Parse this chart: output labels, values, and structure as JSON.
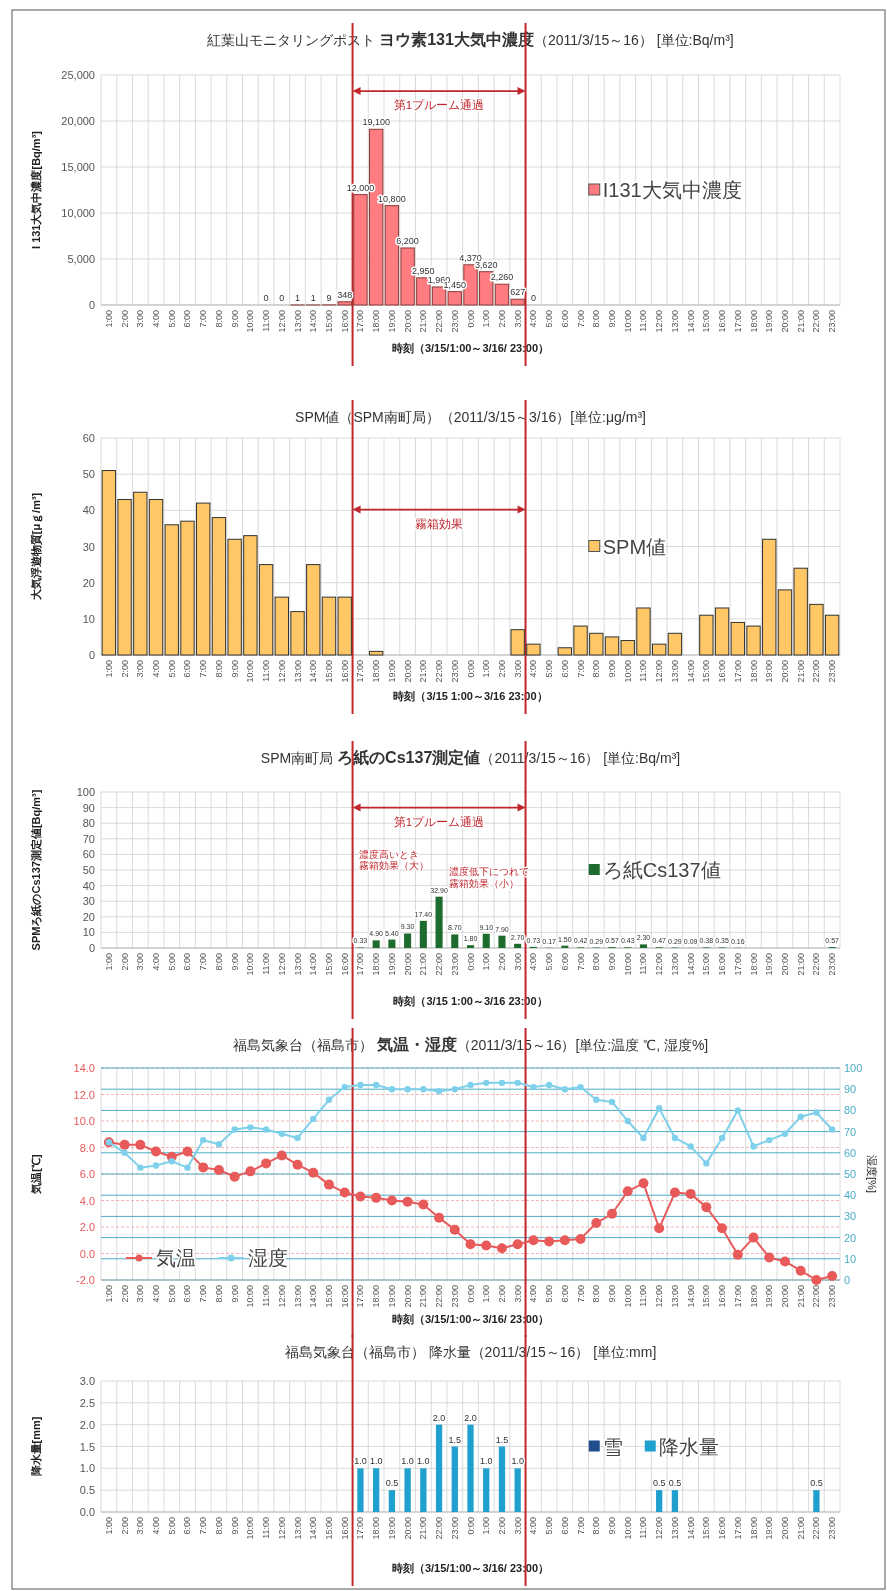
{
  "chart_data": [
    {
      "type": "bar",
      "title": "紅葉山モニタリングポスト **ヨウ素131大気中濃度**（2011/3/15～16） [単位:Bq/m³]",
      "xlabel": "時刻（3/15/1:00～3/16/ 23:00）",
      "ylabel": "I 131大気中濃度[Bq/m³]",
      "categories": [
        "1:00",
        "2:00",
        "3:00",
        "4:00",
        "5:00",
        "6:00",
        "7:00",
        "8:00",
        "9:00",
        "10:00",
        "11:00",
        "12:00",
        "13:00",
        "14:00",
        "15:00",
        "16:00",
        "17:00",
        "18:00",
        "19:00",
        "20:00",
        "21:00",
        "22:00",
        "23:00",
        "0:00",
        "1:00",
        "2:00",
        "3:00",
        "4:00",
        "5:00",
        "6:00",
        "7:00",
        "8:00",
        "9:00",
        "10:00",
        "11:00",
        "12:00",
        "13:00",
        "14:00",
        "15:00",
        "16:00",
        "17:00",
        "18:00",
        "19:00",
        "20:00",
        "21:00",
        "22:00",
        "23:00"
      ],
      "series": [
        {
          "name": "I131大気中濃度",
          "color": "#ff7c80",
          "values": [
            null,
            null,
            null,
            null,
            null,
            null,
            null,
            null,
            null,
            null,
            0,
            0,
            1,
            1,
            9,
            348,
            12000,
            19100,
            10800,
            6200,
            2950,
            1960,
            1450,
            4370,
            3620,
            2260,
            627,
            0,
            null,
            null,
            null,
            null,
            null,
            null,
            null,
            null,
            null,
            null,
            null,
            null,
            null,
            null,
            null,
            null,
            null,
            null,
            null
          ],
          "value_labels": [
            null,
            null,
            null,
            null,
            null,
            null,
            null,
            null,
            null,
            null,
            "0",
            "0",
            "1",
            "1",
            "9",
            "348",
            "12,000",
            "19,100",
            "10,800",
            "6,200",
            "2,950",
            "1,960",
            "1,450",
            "4,370",
            "3,620",
            "2,260",
            "627",
            "0",
            null,
            null,
            null,
            null,
            null,
            null,
            null,
            null,
            null,
            null,
            null,
            null,
            null,
            null,
            null,
            null,
            null,
            null,
            null
          ]
        }
      ],
      "ylim": [
        0,
        25000
      ],
      "yticks": [
        0,
        {
          "value": 5000,
          "label": "5,000"
        },
        {
          "value": 10000,
          "label": "10,000"
        },
        {
          "value": 15000,
          "label": "15,000"
        },
        {
          "value": 20000,
          "label": "20,000"
        },
        {
          "value": 25000,
          "label": "25,000"
        }
      ],
      "grid": true,
      "legend": "right",
      "annotations": [
        "第1プルーム通過"
      ]
    },
    {
      "type": "bar",
      "title": "SPM値（SPM南町局）（2011/3/15～3/16）[単位:μg/m³]",
      "xlabel": "時刻（3/15 1:00～3/16 23:00）",
      "ylabel": "大気浮遊物質[μｇ/m³]",
      "categories": [
        "1:00",
        "2:00",
        "3:00",
        "4:00",
        "5:00",
        "6:00",
        "7:00",
        "8:00",
        "9:00",
        "10:00",
        "11:00",
        "12:00",
        "13:00",
        "14:00",
        "15:00",
        "16:00",
        "17:00",
        "18:00",
        "19:00",
        "20:00",
        "21:00",
        "22:00",
        "23:00",
        "0:00",
        "1:00",
        "2:00",
        "3:00",
        "4:00",
        "5:00",
        "6:00",
        "7:00",
        "8:00",
        "9:00",
        "10:00",
        "11:00",
        "12:00",
        "13:00",
        "14:00",
        "15:00",
        "16:00",
        "17:00",
        "18:00",
        "19:00",
        "20:00",
        "21:00",
        "22:00",
        "23:00"
      ],
      "series": [
        {
          "name": "SPM値",
          "color": "#ffc766",
          "values": [
            51,
            43,
            45,
            43,
            36,
            37,
            42,
            38,
            32,
            33,
            25,
            16,
            12,
            25,
            16,
            16,
            0,
            1,
            0,
            0,
            0,
            0,
            0,
            0,
            0,
            0,
            7,
            3,
            0,
            2,
            8,
            6,
            5,
            4,
            13,
            3,
            6,
            0,
            11,
            13,
            9,
            8,
            32,
            18,
            24,
            14,
            11
          ]
        }
      ],
      "ylim": [
        0,
        60
      ],
      "yticks": [
        0,
        10,
        20,
        30,
        40,
        50,
        60
      ],
      "grid": true,
      "legend": "right",
      "annotations": [
        "霧箱効果"
      ]
    },
    {
      "type": "bar",
      "title": "SPM南町局 **ろ紙のCs137測定値**（2011/3/15～16） [単位:Bq/m³]",
      "xlabel": "時刻（3/15 1:00～3/16 23:00）",
      "ylabel": "SPMろ紙のCs137測定値[Bq/m³]",
      "categories": [
        "1:00",
        "2:00",
        "3:00",
        "4:00",
        "5:00",
        "6:00",
        "7:00",
        "8:00",
        "9:00",
        "10:00",
        "11:00",
        "12:00",
        "13:00",
        "14:00",
        "15:00",
        "16:00",
        "17:00",
        "18:00",
        "19:00",
        "20:00",
        "21:00",
        "22:00",
        "23:00",
        "0:00",
        "1:00",
        "2:00",
        "3:00",
        "4:00",
        "5:00",
        "6:00",
        "7:00",
        "8:00",
        "9:00",
        "10:00",
        "11:00",
        "12:00",
        "13:00",
        "14:00",
        "15:00",
        "16:00",
        "17:00",
        "18:00",
        "19:00",
        "20:00",
        "21:00",
        "22:00",
        "23:00"
      ],
      "series": [
        {
          "name": "ろ紙Cs137値",
          "color": "#1e6b2e",
          "values": [
            null,
            null,
            null,
            null,
            null,
            null,
            null,
            null,
            null,
            null,
            null,
            null,
            null,
            null,
            null,
            null,
            0.33,
            4.9,
            5.4,
            9.3,
            17.4,
            32.9,
            8.7,
            1.8,
            9.1,
            7.9,
            2.7,
            0.73,
            0.17,
            1.5,
            0.42,
            0.29,
            0.57,
            0.43,
            2.3,
            0.47,
            0.29,
            0.09,
            0.38,
            0.35,
            0.16,
            null,
            null,
            null,
            null,
            null,
            0.57
          ],
          "value_labels": [
            null,
            null,
            null,
            null,
            null,
            null,
            null,
            null,
            null,
            null,
            null,
            null,
            null,
            null,
            null,
            null,
            "0.33",
            "4.90",
            "5.40",
            "9.30",
            "17.40",
            "32.90",
            "8.70",
            "1.80",
            "9.10",
            "7.90",
            "2.70",
            "0.73",
            "0.17",
            "1.50",
            "0.42",
            "0.29",
            "0.57",
            "0.43",
            "2.30",
            "0.47",
            "0.29",
            "0.09",
            "0.38",
            "0.35",
            "0.16",
            null,
            null,
            null,
            null,
            null,
            "0.57"
          ]
        }
      ],
      "ylim": [
        0,
        100
      ],
      "yticks": [
        0,
        10,
        20,
        30,
        40,
        50,
        60,
        70,
        80,
        90,
        100
      ],
      "grid": true,
      "legend": "right",
      "annotations": [
        "第1プルーム通過",
        "濃度高いとき霧箱効果（大）",
        "濃度低下につれて霧箱効果（小）"
      ]
    },
    {
      "type": "line",
      "title": "福島気象台（福島市） **気温・湿度**（2011/3/15～16）[単位:温度 ℃, 湿度%]",
      "xlabel": "時刻（3/15/1:00～3/16/ 23:00）",
      "ylabel": "気温[℃]",
      "y2label": "湿度[%]",
      "categories": [
        "1:00",
        "2:00",
        "3:00",
        "4:00",
        "5:00",
        "6:00",
        "7:00",
        "8:00",
        "9:00",
        "10:00",
        "11:00",
        "12:00",
        "13:00",
        "14:00",
        "15:00",
        "16:00",
        "17:00",
        "18:00",
        "19:00",
        "20:00",
        "21:00",
        "22:00",
        "23:00",
        "0:00",
        "1:00",
        "2:00",
        "3:00",
        "4:00",
        "5:00",
        "6:00",
        "7:00",
        "8:00",
        "9:00",
        "10:00",
        "11:00",
        "12:00",
        "13:00",
        "14:00",
        "15:00",
        "16:00",
        "17:00",
        "18:00",
        "19:00",
        "20:00",
        "21:00",
        "22:00",
        "23:00"
      ],
      "series": [
        {
          "name": "気温",
          "color": "#e85a5a",
          "values": [
            8.4,
            8.2,
            8.2,
            7.7,
            7.3,
            7.7,
            6.5,
            6.3,
            5.8,
            6.2,
            6.8,
            7.4,
            6.7,
            6.1,
            5.2,
            4.6,
            4.3,
            4.2,
            4.0,
            3.9,
            3.7,
            2.7,
            1.8,
            0.7,
            0.6,
            0.4,
            0.7,
            1.0,
            0.9,
            1.0,
            1.1,
            2.3,
            3.0,
            4.7,
            5.3,
            1.9,
            4.6,
            4.5,
            3.5,
            1.9,
            -0.1,
            1.2,
            -0.3,
            -0.6,
            -1.3,
            -2.0,
            -1.7
          ]
        },
        {
          "name": "湿度",
          "color": "#7fd0ea",
          "axis": "y2",
          "values": [
            65,
            60,
            53,
            54,
            56,
            53,
            66,
            64,
            71,
            72,
            71,
            69,
            67,
            76,
            85,
            91,
            92,
            92,
            90,
            90,
            90,
            89,
            90,
            92,
            93,
            93,
            93,
            91,
            92,
            90,
            91,
            85,
            84,
            75,
            67,
            81,
            67,
            63,
            55,
            67,
            80,
            63,
            66,
            69,
            77,
            79,
            71
          ]
        }
      ],
      "ylim": [
        -2,
        14
      ],
      "yticks": [
        {
          "value": -2,
          "label": "-2.0"
        },
        {
          "value": 0,
          "label": "0.0"
        },
        {
          "value": 2,
          "label": "2.0"
        },
        {
          "value": 4,
          "label": "4.0"
        },
        {
          "value": 6,
          "label": "6.0"
        },
        {
          "value": 8,
          "label": "8.0"
        },
        {
          "value": 10,
          "label": "10.0"
        },
        {
          "value": 12,
          "label": "12.0"
        },
        {
          "value": 14,
          "label": "14.0"
        }
      ],
      "y2lim": [
        0,
        100
      ],
      "y2ticks": [
        0,
        10,
        20,
        30,
        40,
        50,
        60,
        70,
        80,
        90,
        100
      ],
      "grid": true,
      "legend": "bottom left",
      "marker": "circle"
    },
    {
      "type": "bar",
      "title": "福島気象台（福島市） 降水量（2011/3/15～16） [単位:mm]",
      "xlabel": "時刻（3/15/1:00～3/16/ 23:00）",
      "ylabel": "降水量[mm]",
      "categories": [
        "1:00",
        "2:00",
        "3:00",
        "4:00",
        "5:00",
        "6:00",
        "7:00",
        "8:00",
        "9:00",
        "10:00",
        "11:00",
        "12:00",
        "13:00",
        "14:00",
        "15:00",
        "16:00",
        "17:00",
        "18:00",
        "19:00",
        "20:00",
        "21:00",
        "22:00",
        "23:00",
        "0:00",
        "1:00",
        "2:00",
        "3:00",
        "4:00",
        "5:00",
        "6:00",
        "7:00",
        "8:00",
        "9:00",
        "10:00",
        "11:00",
        "12:00",
        "13:00",
        "14:00",
        "15:00",
        "16:00",
        "17:00",
        "18:00",
        "19:00",
        "20:00",
        "21:00",
        "22:00",
        "23:00"
      ],
      "series": [
        {
          "name": "雪",
          "color": "#1f4e8c",
          "values": [
            null,
            null,
            null,
            null,
            null,
            null,
            null,
            null,
            null,
            null,
            null,
            null,
            null,
            null,
            null,
            null,
            null,
            null,
            null,
            null,
            null,
            null,
            null,
            null,
            null,
            null,
            null,
            null,
            null,
            null,
            null,
            null,
            null,
            null,
            null,
            null,
            null,
            null,
            null,
            null,
            null,
            null,
            null,
            null,
            null,
            null,
            null
          ]
        },
        {
          "name": "降水量",
          "color": "#1fa0cf",
          "values": [
            null,
            null,
            null,
            null,
            null,
            null,
            null,
            null,
            null,
            null,
            null,
            null,
            null,
            null,
            null,
            null,
            1.0,
            1.0,
            0.5,
            1.0,
            1.0,
            2.0,
            1.5,
            2.0,
            1.0,
            1.5,
            1.0,
            null,
            null,
            null,
            null,
            null,
            null,
            null,
            null,
            0.5,
            0.5,
            null,
            null,
            null,
            null,
            null,
            null,
            null,
            null,
            0.5,
            null
          ],
          "value_labels": [
            null,
            null,
            null,
            null,
            null,
            null,
            null,
            null,
            null,
            null,
            null,
            null,
            null,
            null,
            null,
            null,
            "1.0",
            "1.0",
            "0.5",
            "1.0",
            "1.0",
            "2.0",
            "1.5",
            "2.0",
            "1.0",
            "1.5",
            "1.0",
            null,
            null,
            null,
            null,
            null,
            null,
            null,
            null,
            "0.5",
            "0.5",
            null,
            null,
            null,
            null,
            null,
            null,
            null,
            null,
            "0.5",
            null
          ]
        }
      ],
      "ylim": [
        0,
        3
      ],
      "yticks": [
        {
          "value": 0,
          "label": "0.0"
        },
        0.5,
        {
          "value": 1,
          "label": "1.0"
        },
        1.5,
        {
          "value": 2,
          "label": "2.0"
        },
        2.5,
        {
          "value": 3,
          "label": "3.0"
        }
      ],
      "grid": true,
      "legend": "right"
    }
  ]
}
